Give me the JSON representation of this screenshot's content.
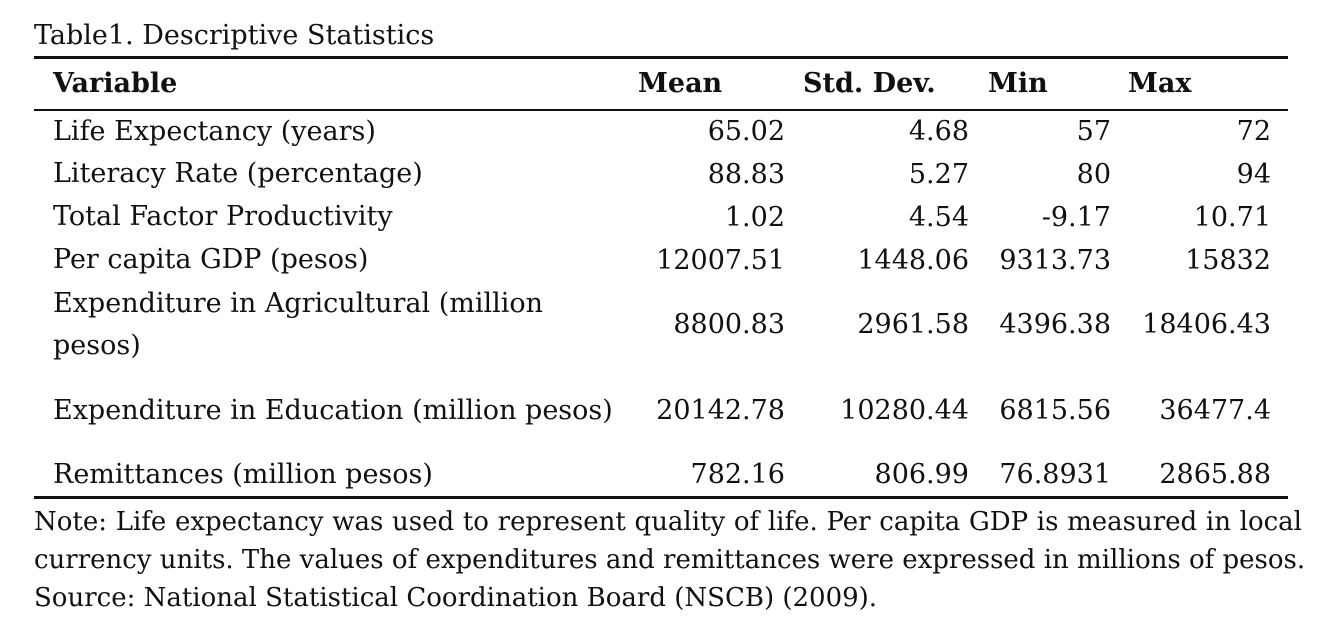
{
  "table": {
    "caption": "Table1. Descriptive Statistics",
    "headers": {
      "variable": "Variable",
      "mean": "Mean",
      "std_dev": "Std. Dev.",
      "min": "Min",
      "max": "Max"
    },
    "rows": [
      {
        "variable": "Life Expectancy (years)",
        "mean": "65.02",
        "std_dev": "4.68",
        "min": "57",
        "max": "72"
      },
      {
        "variable": "Literacy Rate (percentage)",
        "mean": "88.83",
        "std_dev": "5.27",
        "min": "80",
        "max": "94"
      },
      {
        "variable": "Total Factor Productivity",
        "mean": "1.02",
        "std_dev": "4.54",
        "min": "-9.17",
        "max": "10.71"
      },
      {
        "variable": "Per capita GDP (pesos)",
        "mean": "12007.51",
        "std_dev": "1448.06",
        "min": "9313.73",
        "max": "15832"
      },
      {
        "variable": "Expenditure in Agricultural (million pesos)",
        "mean": "8800.83",
        "std_dev": "2961.58",
        "min": "4396.38",
        "max": "18406.43"
      },
      {
        "variable": "Expenditure in Education (million pesos)",
        "mean": "20142.78",
        "std_dev": "10280.44",
        "min": "6815.56",
        "max": "36477.4"
      },
      {
        "variable": "Remittances (million pesos)",
        "mean": "782.16",
        "std_dev": "806.99",
        "min": "76.8931",
        "max": "2865.88"
      }
    ]
  },
  "note": {
    "line1": "Note: Life expectancy was used to represent quality of life. Per capita GDP is measured in local",
    "line2": "currency units. The values of expenditures and remittances were expressed in millions of pesos.",
    "source": "Source: National Statistical Coordination Board (NSCB) (2009)."
  }
}
